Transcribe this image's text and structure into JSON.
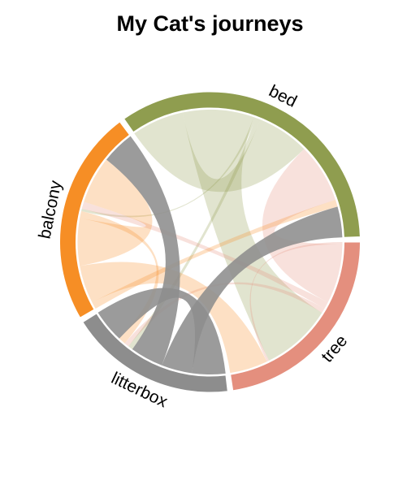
{
  "chart_data": {
    "type": "chord",
    "title": "My Cat's journeys",
    "sectors": [
      {
        "name": "tree",
        "color": "#e48f7e"
      },
      {
        "name": "litterbox",
        "color": "#8d8d8d"
      },
      {
        "name": "balcony",
        "color": "#f68e25"
      },
      {
        "name": "bed",
        "color": "#8f9d4f"
      }
    ],
    "flows": [
      {
        "from": "bed",
        "to": "bed",
        "value": 22
      },
      {
        "from": "bed",
        "to": "tree",
        "value": 30
      },
      {
        "from": "bed",
        "to": "balcony",
        "value": 1
      },
      {
        "from": "bed",
        "to": "litterbox",
        "value": 2
      },
      {
        "from": "tree",
        "to": "tree",
        "value": 1
      },
      {
        "from": "tree",
        "to": "bed",
        "value": 25
      },
      {
        "from": "tree",
        "to": "balcony",
        "value": 3
      },
      {
        "from": "tree",
        "to": "litterbox",
        "value": 2
      },
      {
        "from": "balcony",
        "to": "bed",
        "value": 3
      },
      {
        "from": "balcony",
        "to": "tree",
        "value": 16
      },
      {
        "from": "balcony",
        "to": "balcony",
        "value": 20
      },
      {
        "from": "balcony",
        "to": "litterbox",
        "value": 3
      },
      {
        "from": "litterbox",
        "to": "litterbox",
        "value": 14
      },
      {
        "from": "litterbox",
        "to": "bed",
        "value": 13
      },
      {
        "from": "litterbox",
        "to": "balcony",
        "value": 14
      }
    ]
  }
}
